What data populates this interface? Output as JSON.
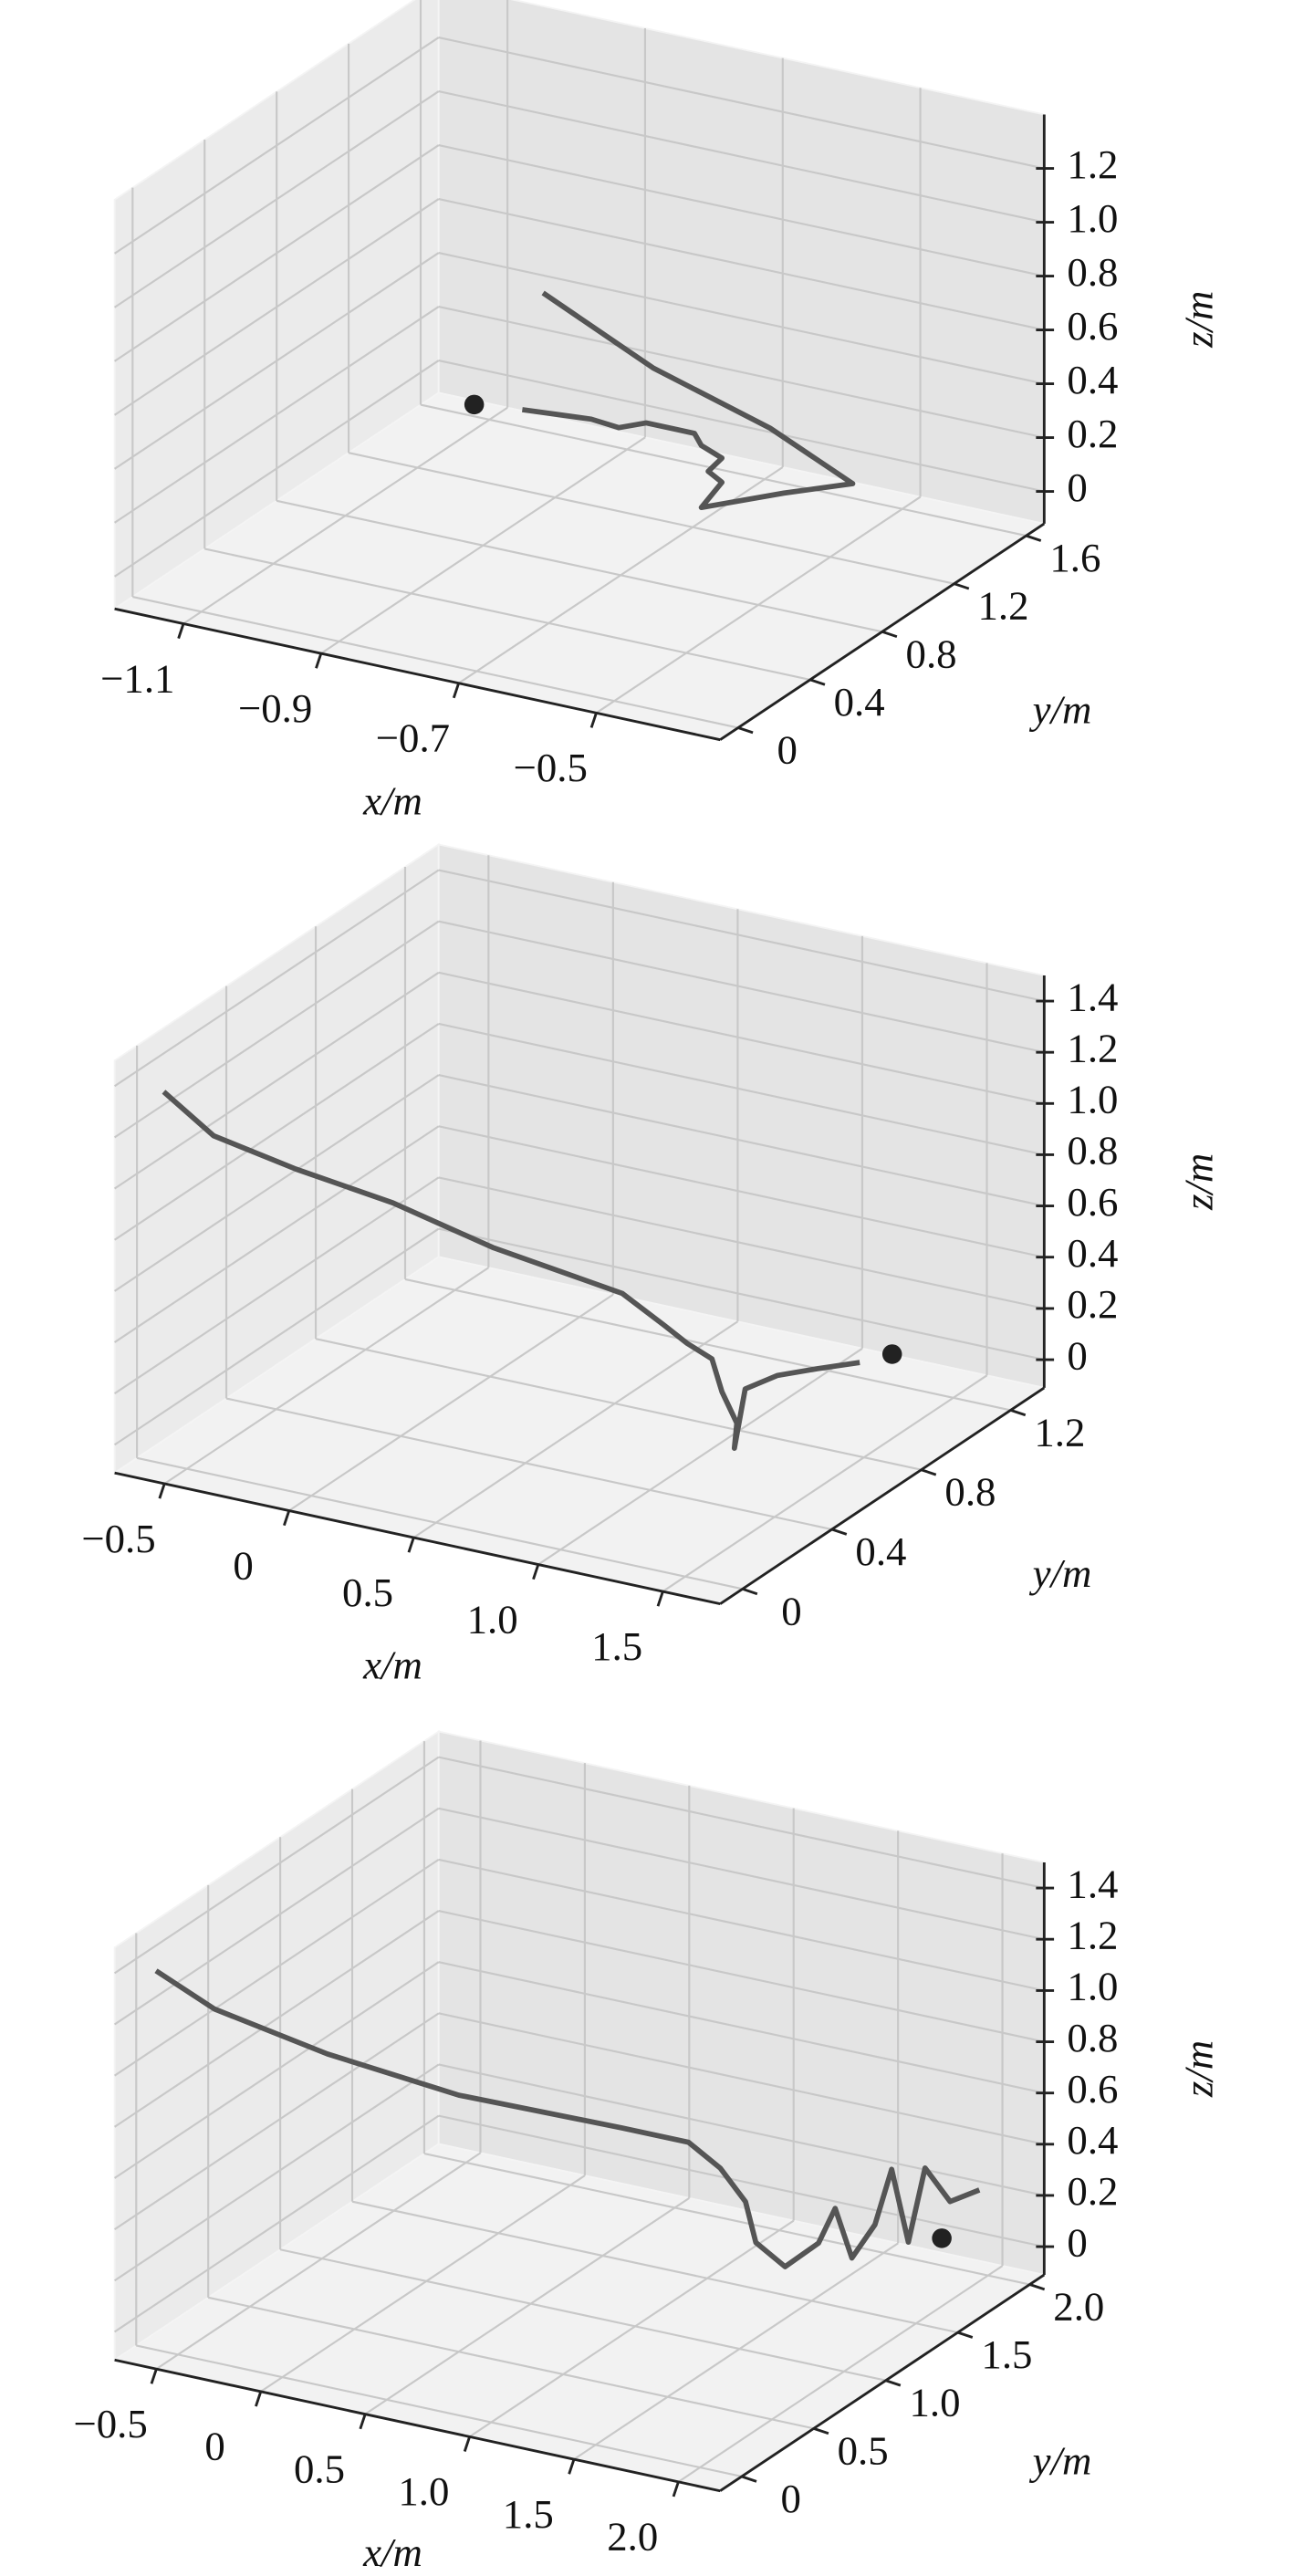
{
  "chart_data": [
    {
      "type": "line3d",
      "xlabel": "x/m",
      "ylabel": "y/m",
      "zlabel": "z/m",
      "xlim": [
        -1.2,
        -0.32
      ],
      "ylim": [
        -0.1,
        1.7
      ],
      "zlim": [
        -0.12,
        1.4
      ],
      "xticks": [
        {
          "value": -1.1,
          "label": "−1.1"
        },
        {
          "value": -0.9,
          "label": "−0.9"
        },
        {
          "value": -0.7,
          "label": "−0.7"
        },
        {
          "value": -0.5,
          "label": "−0.5"
        }
      ],
      "yticks": [
        0,
        0.4,
        0.8,
        1.2,
        1.6
      ],
      "zticks": [
        0,
        0.2,
        0.4,
        0.6,
        0.8,
        {
          "value": 1,
          "label": "1.0"
        },
        1.2
      ],
      "grid": true,
      "series": [
        {
          "color": "#555555",
          "x": [
            -0.86,
            -0.7,
            -0.53,
            -0.41,
            -0.51,
            -0.63,
            -0.6,
            -0.62,
            -0.6,
            -0.63,
            -0.64,
            -0.67,
            -0.71,
            -0.75,
            -0.79,
            -0.84,
            -0.89
          ],
          "y": [
            0.98,
            0.98,
            0.98,
            0.98,
            0.98,
            0.98,
            0.98,
            0.98,
            0.98,
            0.98,
            0.98,
            0.98,
            0.98,
            0.98,
            0.98,
            0.98,
            0.98
          ],
          "z": [
            0.76,
            0.57,
            0.44,
            0.3,
            0.21,
            0.09,
            0.2,
            0.23,
            0.29,
            0.32,
            0.36,
            0.36,
            0.36,
            0.32,
            0.33,
            0.32,
            0.31
          ]
        }
      ],
      "markers": {
        "color": "#222222",
        "x": [
          -0.96
        ],
        "y": [
          0.98
        ],
        "z": [
          0.29
        ]
      }
    },
    {
      "type": "line3d",
      "xlabel": "x/m",
      "ylabel": "y/m",
      "zlabel": "z/m",
      "xlim": [
        -0.7,
        1.73
      ],
      "ylim": [
        -0.1,
        1.35
      ],
      "zlim": [
        -0.11,
        1.5
      ],
      "xticks": [
        {
          "value": -0.5,
          "label": "−0.5"
        },
        0,
        0.5,
        {
          "value": 1,
          "label": "1.0"
        },
        1.5
      ],
      "yticks": [
        0,
        0.4,
        0.8,
        1.2
      ],
      "zticks": [
        0,
        0.2,
        0.4,
        0.6,
        0.8,
        {
          "value": 1,
          "label": "1.0"
        },
        1.2,
        1.4
      ],
      "grid": true,
      "series": [
        {
          "color": "#555555",
          "x": [
            -0.7,
            -0.5,
            -0.17,
            0.22,
            0.62,
            1.14,
            1.31,
            1.4,
            1.5,
            1.54,
            1.6,
            1.59,
            1.05,
            1.18,
            1.34,
            1.51
          ],
          "y": [
            0.12,
            0.12,
            0.12,
            0.12,
            0.12,
            0.12,
            0.12,
            0.12,
            0.12,
            0.12,
            0.12,
            0.12,
            0.77,
            0.77,
            0.77,
            0.77
          ],
          "z": [
            1.25,
            1.12,
            1.06,
            1.01,
            0.92,
            0.85,
            0.76,
            0.71,
            0.67,
            0.55,
            0.44,
            0.34,
            0.08,
            0.16,
            0.22,
            0.28
          ]
        }
      ],
      "markers": {
        "color": "#222222",
        "x": [
          1.64
        ],
        "y": [
          0.77
        ],
        "z": [
          0.34
        ]
      }
    },
    {
      "type": "line3d",
      "xlabel": "x/m",
      "ylabel": "y/m",
      "zlabel": "z/m",
      "xlim": [
        -0.7,
        2.2
      ],
      "ylim": [
        -0.15,
        2.1
      ],
      "zlim": [
        -0.11,
        1.5
      ],
      "xticks": [
        {
          "value": -0.5,
          "label": "−0.5"
        },
        0,
        0.5,
        {
          "value": 1,
          "label": "1.0"
        },
        1.5,
        {
          "value": 2,
          "label": "2.0"
        }
      ],
      "yticks": [
        0,
        0.5,
        {
          "value": 1,
          "label": "1.0"
        },
        1.5,
        {
          "value": 2,
          "label": "2.0"
        }
      ],
      "zticks": [
        0,
        0.2,
        0.4,
        0.6,
        0.8,
        {
          "value": 1,
          "label": "1.0"
        },
        1.2,
        1.4
      ],
      "grid": true,
      "series": [
        {
          "color": "#555555",
          "x": [
            -0.66,
            -0.38,
            0.16,
            0.79,
            1.57,
            1.89,
            1.27,
            1.39,
            1.44,
            1.58,
            1.74,
            1.82,
            1.9,
            2.01,
            2.09,
            2.17,
            1.94,
            2.06,
            2.2
          ],
          "y": [
            0.08,
            0.08,
            0.08,
            0.08,
            0.08,
            0.08,
            1.2,
            1.2,
            1.2,
            1.2,
            1.2,
            1.2,
            1.2,
            1.2,
            1.2,
            1.2,
            1.65,
            1.65,
            1.65
          ],
          "z": [
            1.33,
            1.23,
            1.15,
            1.1,
            1.11,
            1.11,
            0.48,
            0.37,
            0.22,
            0.15,
            0.27,
            0.42,
            0.24,
            0.39,
            0.62,
            0.35,
            0.43,
            0.32,
            0.39
          ]
        }
      ],
      "markers": {
        "color": "#222222",
        "x": [
          2.02
        ],
        "y": [
          1.65
        ],
        "z": [
          0.17
        ]
      }
    }
  ]
}
